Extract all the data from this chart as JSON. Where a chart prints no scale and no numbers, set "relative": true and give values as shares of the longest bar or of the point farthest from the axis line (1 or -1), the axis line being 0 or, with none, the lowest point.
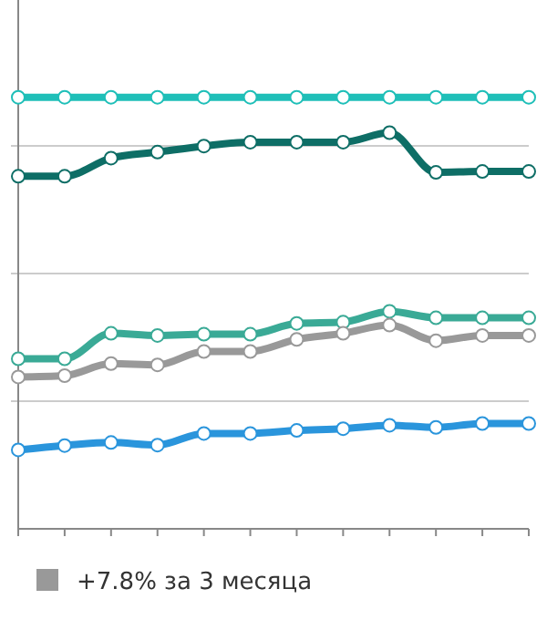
{
  "chart_data": {
    "type": "line",
    "relative": true,
    "categories": [
      null,
      null,
      null,
      null,
      null,
      null,
      null,
      null,
      null,
      null,
      null,
      null
    ],
    "grid": "y",
    "marker": "circle",
    "line_style": "solid",
    "legend": "bottom left",
    "series": [
      {
        "color": "#1fbfb8",
        "values": [
          1,
          1,
          1,
          1,
          1,
          1,
          1,
          1,
          1,
          1,
          1,
          1
        ]
      },
      {
        "color": "#0e6e66",
        "values": [
          0.817,
          0.817,
          0.859,
          0.873,
          0.887,
          0.896,
          0.896,
          0.896,
          0.918,
          0.826,
          0.828,
          0.828
        ]
      },
      {
        "color": "#3aaa96",
        "values": [
          0.394,
          0.394,
          0.453,
          0.448,
          0.451,
          0.451,
          0.476,
          0.479,
          0.504,
          0.489,
          0.489,
          0.489
        ]
      },
      {
        "name": "+7.8% за 3 месяца",
        "color": "#999999",
        "values": [
          0.352,
          0.355,
          0.383,
          0.38,
          0.411,
          0.411,
          0.439,
          0.453,
          0.472,
          0.436,
          0.448,
          0.448
        ]
      },
      {
        "color": "#2a95dc",
        "values": [
          0.183,
          0.193,
          0.2,
          0.194,
          0.221,
          0.221,
          0.228,
          0.232,
          0.24,
          0.235,
          0.244,
          0.244
        ]
      }
    ]
  }
}
